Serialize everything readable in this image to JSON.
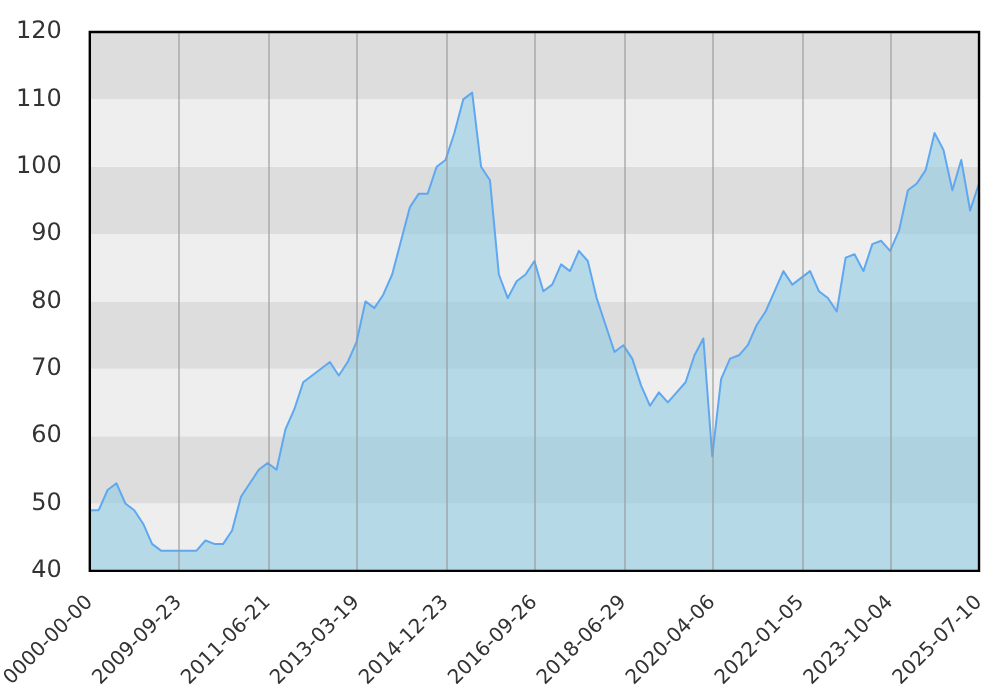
{
  "chart_data": {
    "type": "area",
    "categories": [
      "0000-00-00",
      null,
      null,
      null,
      null,
      null,
      null,
      null,
      null,
      null,
      "2009-09-23",
      null,
      null,
      null,
      null,
      null,
      null,
      null,
      null,
      null,
      "2011-06-21",
      null,
      null,
      null,
      null,
      null,
      null,
      null,
      null,
      null,
      "2013-03-19",
      null,
      null,
      null,
      null,
      null,
      null,
      null,
      null,
      null,
      "2014-12-23",
      null,
      null,
      null,
      null,
      null,
      null,
      null,
      null,
      null,
      "2016-09-26",
      null,
      null,
      null,
      null,
      null,
      null,
      null,
      null,
      null,
      "2018-06-29",
      null,
      null,
      null,
      null,
      null,
      null,
      null,
      null,
      null,
      "2020-04-06",
      null,
      null,
      null,
      null,
      null,
      null,
      null,
      null,
      null,
      "2022-01-05",
      null,
      null,
      null,
      null,
      null,
      null,
      null,
      null,
      null,
      "2023-10-04",
      null,
      null,
      null,
      null,
      null,
      null,
      null,
      null,
      null,
      "2025-07-10"
    ],
    "series": [
      {
        "color": "#5fa8f0",
        "values": [
          49,
          49,
          52,
          53,
          50,
          49,
          47,
          44,
          43,
          43,
          43,
          43,
          43,
          44.5,
          44,
          44,
          46,
          51,
          53,
          55,
          56,
          55,
          61,
          64,
          68,
          69,
          70,
          71,
          69,
          71,
          74,
          80,
          79,
          81,
          84,
          89,
          94,
          96,
          96,
          100,
          101,
          105,
          110,
          111,
          100,
          98,
          84,
          80.5,
          83,
          84,
          86,
          81.5,
          82.5,
          85.5,
          84.5,
          87.5,
          86,
          80.5,
          76.5,
          72.5,
          73.5,
          71.5,
          67.5,
          64.5,
          66.5,
          65,
          66.5,
          68,
          72,
          74.5,
          57,
          68.5,
          71.5,
          72,
          73.5,
          76.5,
          78.5,
          81.5,
          84.5,
          82.5,
          83.5,
          84.5,
          81.5,
          80.5,
          78.5,
          86.5,
          87,
          84.5,
          88.5,
          89,
          87.5,
          90.5,
          96.5,
          97.5,
          99.5,
          105,
          102.5,
          96.5,
          101,
          93.5,
          97.5
        ]
      }
    ],
    "ylim": [
      40,
      120
    ],
    "yticks": [
      40,
      50,
      60,
      70,
      80,
      90,
      100,
      110,
      120
    ],
    "grid": true,
    "legend": false
  }
}
